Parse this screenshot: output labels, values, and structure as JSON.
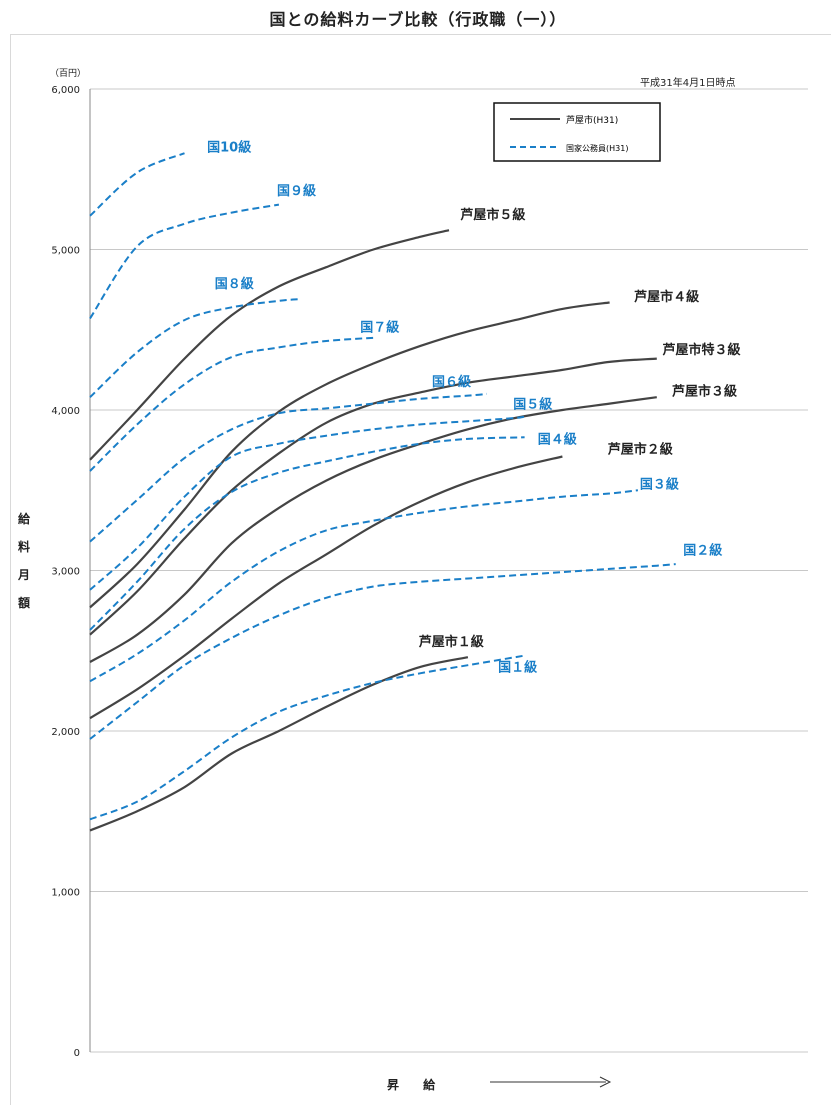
{
  "title": "国との給料カーブ比較（行政職（一））",
  "note": "平成31年4月1日時点",
  "axes": {
    "ylabel_chars": [
      "給",
      "料",
      "月",
      "額"
    ],
    "unit": "（百円）",
    "xlabel": "昇 給"
  },
  "legend": {
    "city": "芦屋市(H31)",
    "national": "国家公務員(H31)"
  },
  "colors": {
    "city": "#444444",
    "national": "#1a7fc8",
    "grid": "#c8c8c8"
  },
  "chart_data": {
    "type": "line",
    "title": "国との給料カーブ比較（行政職（一））",
    "xlabel": "昇 給",
    "ylabel": "給料月額",
    "ylim": [
      0,
      6000
    ],
    "yticks": [
      "0",
      "1,000",
      "2,000",
      "3,000",
      "4,000",
      "5,000",
      "6,000"
    ],
    "grid": true,
    "legend_position": "top-right",
    "series": [
      {
        "name": "芦屋市１級",
        "group": "city",
        "points": [
          [
            0,
            1380
          ],
          [
            25,
            1500
          ],
          [
            50,
            1650
          ],
          [
            75,
            1860
          ],
          [
            100,
            2000
          ],
          [
            125,
            2150
          ],
          [
            150,
            2290
          ],
          [
            175,
            2400
          ],
          [
            200,
            2460
          ]
        ]
      },
      {
        "name": "芦屋市２級",
        "group": "city",
        "points": [
          [
            0,
            2080
          ],
          [
            25,
            2260
          ],
          [
            50,
            2470
          ],
          [
            75,
            2700
          ],
          [
            100,
            2920
          ],
          [
            125,
            3100
          ],
          [
            150,
            3280
          ],
          [
            175,
            3430
          ],
          [
            200,
            3550
          ],
          [
            225,
            3640
          ],
          [
            250,
            3710
          ]
        ]
      },
      {
        "name": "芦屋市３級",
        "group": "city",
        "points": [
          [
            0,
            2430
          ],
          [
            25,
            2600
          ],
          [
            50,
            2850
          ],
          [
            75,
            3170
          ],
          [
            100,
            3390
          ],
          [
            125,
            3560
          ],
          [
            150,
            3690
          ],
          [
            175,
            3790
          ],
          [
            200,
            3880
          ],
          [
            225,
            3950
          ],
          [
            250,
            4000
          ],
          [
            275,
            4040
          ],
          [
            300,
            4080
          ]
        ]
      },
      {
        "name": "芦屋市特３級",
        "group": "city",
        "points": [
          [
            0,
            2600
          ],
          [
            25,
            2870
          ],
          [
            50,
            3200
          ],
          [
            75,
            3500
          ],
          [
            100,
            3730
          ],
          [
            125,
            3920
          ],
          [
            150,
            4040
          ],
          [
            175,
            4110
          ],
          [
            200,
            4170
          ],
          [
            225,
            4210
          ],
          [
            250,
            4250
          ],
          [
            275,
            4300
          ],
          [
            300,
            4320
          ]
        ]
      },
      {
        "name": "芦屋市４級",
        "group": "city",
        "points": [
          [
            0,
            2770
          ],
          [
            25,
            3040
          ],
          [
            50,
            3380
          ],
          [
            75,
            3740
          ],
          [
            100,
            3990
          ],
          [
            125,
            4160
          ],
          [
            150,
            4290
          ],
          [
            175,
            4400
          ],
          [
            200,
            4490
          ],
          [
            225,
            4560
          ],
          [
            250,
            4630
          ],
          [
            275,
            4670
          ]
        ]
      },
      {
        "name": "芦屋市５級",
        "group": "city",
        "points": [
          [
            0,
            3690
          ],
          [
            25,
            4000
          ],
          [
            50,
            4320
          ],
          [
            75,
            4590
          ],
          [
            100,
            4770
          ],
          [
            125,
            4890
          ],
          [
            150,
            5000
          ],
          [
            175,
            5080
          ],
          [
            190,
            5120
          ]
        ]
      },
      {
        "name": "国１級",
        "group": "national",
        "points": [
          [
            0,
            1450
          ],
          [
            25,
            1560
          ],
          [
            50,
            1750
          ],
          [
            75,
            1960
          ],
          [
            100,
            2120
          ],
          [
            125,
            2220
          ],
          [
            150,
            2300
          ],
          [
            175,
            2360
          ],
          [
            200,
            2410
          ],
          [
            230,
            2470
          ]
        ]
      },
      {
        "name": "国２級",
        "group": "national",
        "points": [
          [
            0,
            1950
          ],
          [
            25,
            2180
          ],
          [
            50,
            2410
          ],
          [
            75,
            2580
          ],
          [
            100,
            2720
          ],
          [
            125,
            2830
          ],
          [
            150,
            2900
          ],
          [
            175,
            2930
          ],
          [
            200,
            2950
          ],
          [
            225,
            2970
          ],
          [
            250,
            2990
          ],
          [
            275,
            3010
          ],
          [
            300,
            3030
          ],
          [
            310,
            3040
          ]
        ]
      },
      {
        "name": "国３級",
        "group": "national",
        "points": [
          [
            0,
            2310
          ],
          [
            25,
            2480
          ],
          [
            50,
            2690
          ],
          [
            75,
            2930
          ],
          [
            100,
            3120
          ],
          [
            125,
            3250
          ],
          [
            150,
            3310
          ],
          [
            175,
            3360
          ],
          [
            200,
            3400
          ],
          [
            225,
            3430
          ],
          [
            250,
            3460
          ],
          [
            275,
            3480
          ],
          [
            290,
            3500
          ]
        ]
      },
      {
        "name": "国４級",
        "group": "national",
        "points": [
          [
            0,
            2630
          ],
          [
            25,
            2930
          ],
          [
            50,
            3260
          ],
          [
            75,
            3490
          ],
          [
            100,
            3610
          ],
          [
            125,
            3680
          ],
          [
            150,
            3740
          ],
          [
            175,
            3790
          ],
          [
            200,
            3820
          ],
          [
            230,
            3830
          ]
        ]
      },
      {
        "name": "国５級",
        "group": "national",
        "points": [
          [
            0,
            2880
          ],
          [
            25,
            3140
          ],
          [
            50,
            3460
          ],
          [
            75,
            3710
          ],
          [
            100,
            3790
          ],
          [
            125,
            3840
          ],
          [
            150,
            3880
          ],
          [
            175,
            3910
          ],
          [
            200,
            3930
          ],
          [
            225,
            3950
          ],
          [
            230,
            3960
          ]
        ]
      },
      {
        "name": "国６級",
        "group": "national",
        "points": [
          [
            0,
            3180
          ],
          [
            25,
            3440
          ],
          [
            50,
            3700
          ],
          [
            75,
            3880
          ],
          [
            100,
            3980
          ],
          [
            125,
            4010
          ],
          [
            150,
            4040
          ],
          [
            175,
            4070
          ],
          [
            200,
            4090
          ],
          [
            210,
            4100
          ]
        ]
      },
      {
        "name": "国７級",
        "group": "national",
        "points": [
          [
            0,
            3620
          ],
          [
            25,
            3910
          ],
          [
            50,
            4160
          ],
          [
            75,
            4330
          ],
          [
            100,
            4390
          ],
          [
            125,
            4430
          ],
          [
            150,
            4450
          ]
        ]
      },
      {
        "name": "国８級",
        "group": "national",
        "points": [
          [
            0,
            4080
          ],
          [
            25,
            4360
          ],
          [
            50,
            4560
          ],
          [
            75,
            4640
          ],
          [
            100,
            4680
          ],
          [
            110,
            4690
          ]
        ]
      },
      {
        "name": "国９級",
        "group": "national",
        "points": [
          [
            0,
            4570
          ],
          [
            25,
            5020
          ],
          [
            50,
            5160
          ],
          [
            75,
            5230
          ],
          [
            100,
            5280
          ]
        ]
      },
      {
        "name": "国10級",
        "group": "national",
        "points": [
          [
            0,
            5210
          ],
          [
            25,
            5480
          ],
          [
            50,
            5600
          ]
        ]
      }
    ],
    "labels": [
      {
        "text": "芦屋市５級",
        "group": "city",
        "x": 196,
        "y": 5190
      },
      {
        "text": "芦屋市４級",
        "group": "city",
        "x": 288,
        "y": 4680
      },
      {
        "text": "芦屋市特３級",
        "group": "city",
        "x": 303,
        "y": 4350
      },
      {
        "text": "芦屋市３級",
        "group": "city",
        "x": 308,
        "y": 4090
      },
      {
        "text": "芦屋市２級",
        "group": "city",
        "x": 274,
        "y": 3730
      },
      {
        "text": "芦屋市１級",
        "group": "city",
        "x": 174,
        "y": 2530
      },
      {
        "text": "国10級",
        "group": "national",
        "x": 62,
        "y": 5610
      },
      {
        "text": "国９級",
        "group": "national",
        "x": 99,
        "y": 5340
      },
      {
        "text": "国８級",
        "group": "national",
        "x": 66,
        "y": 4760
      },
      {
        "text": "国７級",
        "group": "national",
        "x": 143,
        "y": 4490
      },
      {
        "text": "国６級",
        "group": "national",
        "x": 181,
        "y": 4150
      },
      {
        "text": "国５級",
        "group": "national",
        "x": 224,
        "y": 4010
      },
      {
        "text": "国４級",
        "group": "national",
        "x": 237,
        "y": 3790
      },
      {
        "text": "国３級",
        "group": "national",
        "x": 291,
        "y": 3510
      },
      {
        "text": "国２級",
        "group": "national",
        "x": 314,
        "y": 3100
      },
      {
        "text": "国１級",
        "group": "national",
        "x": 216,
        "y": 2370
      }
    ]
  }
}
